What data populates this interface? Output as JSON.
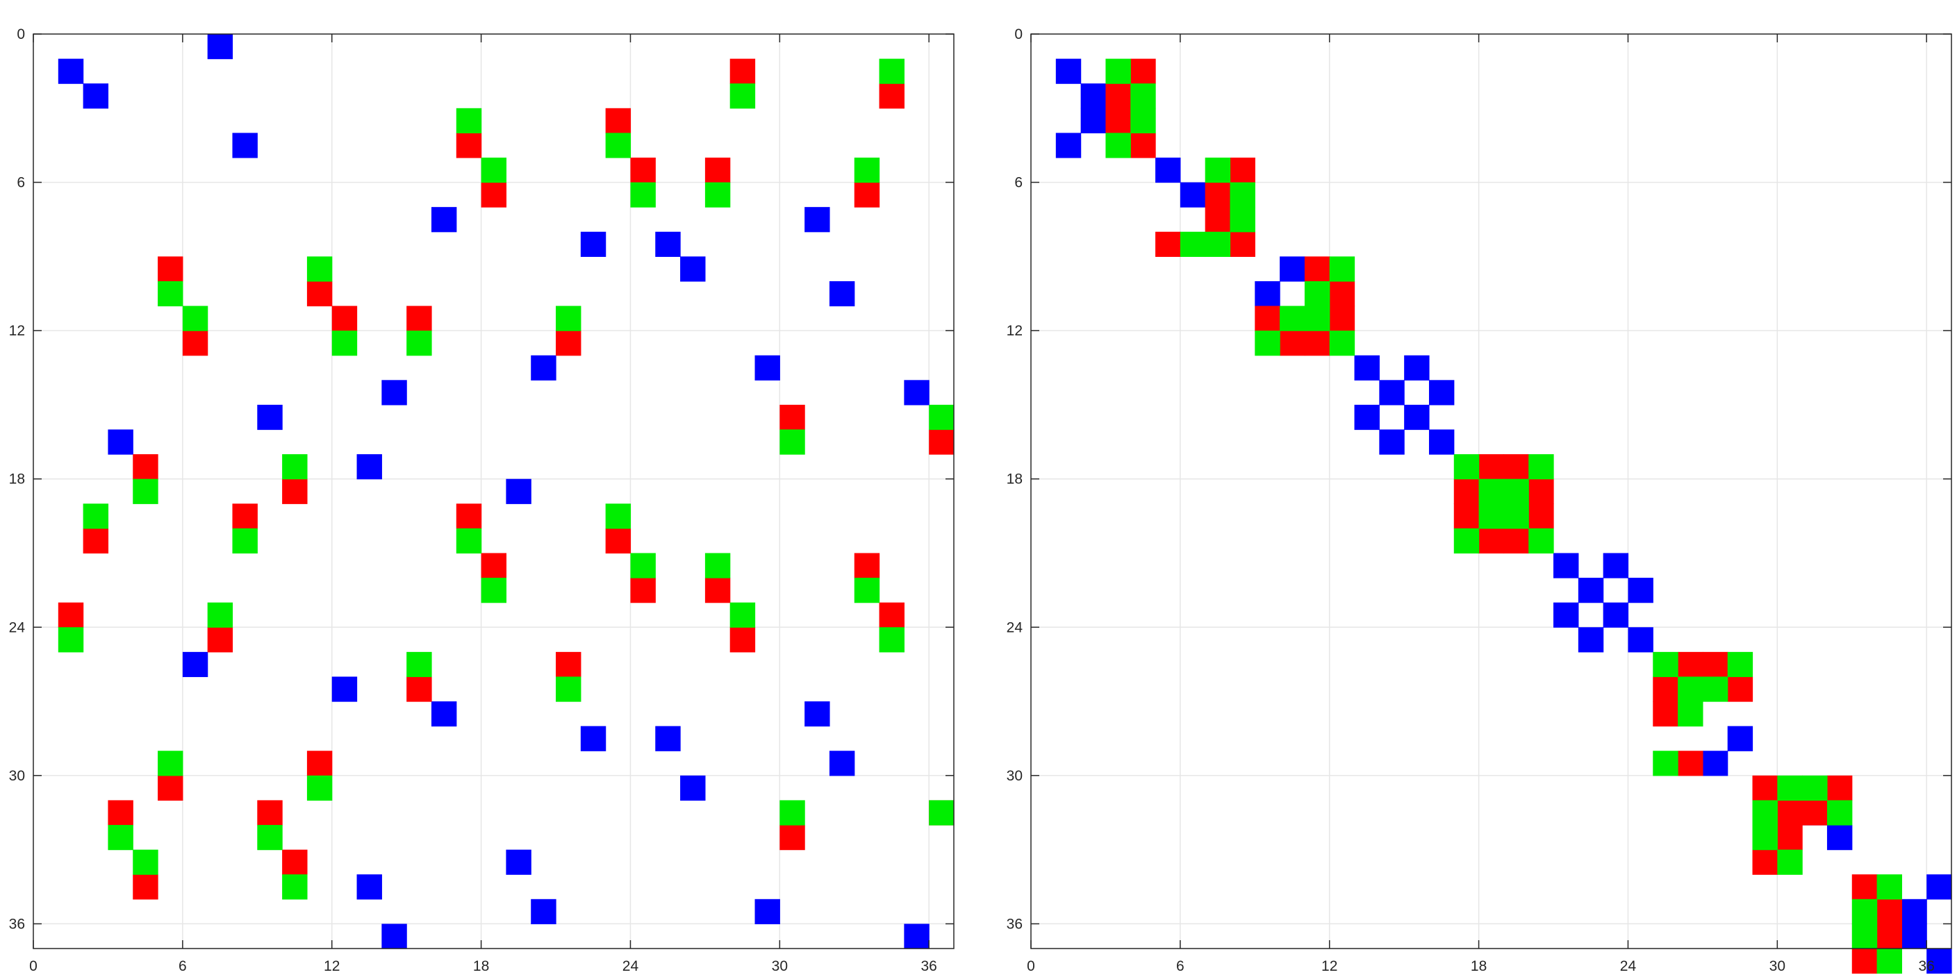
{
  "colors": {
    "blue": "#0000ff",
    "red": "#ff0000",
    "green": "#00ee00",
    "grid": "#e6e6e6",
    "axis": "#262626"
  },
  "chart_data": [
    {
      "type": "heatmap",
      "title": "",
      "xlabel": "",
      "ylabel": "",
      "xlim": [
        0,
        37
      ],
      "ylim": [
        37,
        0
      ],
      "ticks": [
        "0",
        "6",
        "12",
        "18",
        "24",
        "30",
        "36"
      ],
      "grid": true,
      "blue": [
        [
          0,
          7
        ],
        [
          1,
          1
        ],
        [
          2,
          2
        ],
        [
          4,
          8
        ],
        [
          7,
          16
        ],
        [
          7,
          31
        ],
        [
          8,
          22
        ],
        [
          8,
          25
        ],
        [
          9,
          26
        ],
        [
          10,
          32
        ],
        [
          13,
          20
        ],
        [
          13,
          29
        ],
        [
          14,
          14
        ],
        [
          14,
          35
        ],
        [
          15,
          9
        ],
        [
          16,
          3
        ],
        [
          17,
          13
        ],
        [
          18,
          19
        ],
        [
          25,
          6
        ],
        [
          26,
          12
        ],
        [
          27,
          16
        ],
        [
          27,
          31
        ],
        [
          28,
          22
        ],
        [
          28,
          25
        ],
        [
          29,
          32
        ],
        [
          30,
          26
        ],
        [
          33,
          19
        ],
        [
          34,
          13
        ],
        [
          35,
          20
        ],
        [
          35,
          29
        ],
        [
          36,
          14
        ],
        [
          36,
          35
        ]
      ],
      "red": [
        [
          1,
          28
        ],
        [
          2,
          34
        ],
        [
          3,
          23
        ],
        [
          4,
          17
        ],
        [
          5,
          24
        ],
        [
          5,
          27
        ],
        [
          6,
          18
        ],
        [
          6,
          33
        ],
        [
          9,
          5
        ],
        [
          10,
          11
        ],
        [
          11,
          12
        ],
        [
          11,
          15
        ],
        [
          12,
          6
        ],
        [
          12,
          21
        ],
        [
          15,
          30
        ],
        [
          16,
          36
        ],
        [
          17,
          4
        ],
        [
          18,
          10
        ],
        [
          19,
          8
        ],
        [
          19,
          17
        ],
        [
          20,
          2
        ],
        [
          20,
          23
        ],
        [
          21,
          18
        ],
        [
          21,
          33
        ],
        [
          22,
          24
        ],
        [
          22,
          27
        ],
        [
          23,
          1
        ],
        [
          23,
          34
        ],
        [
          24,
          7
        ],
        [
          24,
          28
        ],
        [
          25,
          21
        ],
        [
          26,
          15
        ],
        [
          29,
          11
        ],
        [
          30,
          5
        ],
        [
          31,
          3
        ],
        [
          31,
          9
        ],
        [
          31,
          36
        ],
        [
          32,
          30
        ],
        [
          33,
          10
        ],
        [
          34,
          4
        ]
      ],
      "green": [
        [
          1,
          34
        ],
        [
          2,
          28
        ],
        [
          3,
          17
        ],
        [
          4,
          23
        ],
        [
          5,
          18
        ],
        [
          5,
          33
        ],
        [
          6,
          24
        ],
        [
          6,
          27
        ],
        [
          9,
          11
        ],
        [
          10,
          5
        ],
        [
          11,
          6
        ],
        [
          11,
          21
        ],
        [
          12,
          12
        ],
        [
          12,
          15
        ],
        [
          15,
          36
        ],
        [
          16,
          30
        ],
        [
          17,
          10
        ],
        [
          18,
          4
        ],
        [
          19,
          2
        ],
        [
          19,
          23
        ],
        [
          20,
          8
        ],
        [
          20,
          17
        ],
        [
          21,
          24
        ],
        [
          21,
          27
        ],
        [
          22,
          18
        ],
        [
          22,
          33
        ],
        [
          23,
          7
        ],
        [
          23,
          28
        ],
        [
          24,
          1
        ],
        [
          24,
          34
        ],
        [
          25,
          15
        ],
        [
          26,
          21
        ],
        [
          29,
          5
        ],
        [
          30,
          11
        ],
        [
          31,
          30
        ],
        [
          31,
          36
        ],
        [
          32,
          3
        ],
        [
          32,
          9
        ],
        [
          33,
          4
        ],
        [
          34,
          10
        ]
      ]
    },
    {
      "type": "heatmap",
      "title": "",
      "xlabel": "",
      "ylabel": "",
      "xlim": [
        0,
        37
      ],
      "ylim": [
        37,
        0
      ],
      "ticks": [
        "0",
        "6",
        "12",
        "18",
        "24",
        "30",
        "36"
      ],
      "grid": true,
      "blue": [
        [
          1,
          1
        ],
        [
          2,
          2
        ],
        [
          3,
          2
        ],
        [
          4,
          1
        ],
        [
          5,
          5
        ],
        [
          6,
          6
        ],
        [
          9,
          10
        ],
        [
          10,
          9
        ],
        [
          13,
          13
        ],
        [
          13,
          15
        ],
        [
          14,
          14
        ],
        [
          14,
          16
        ],
        [
          15,
          13
        ],
        [
          15,
          15
        ],
        [
          16,
          14
        ],
        [
          16,
          16
        ],
        [
          21,
          21
        ],
        [
          21,
          23
        ],
        [
          22,
          22
        ],
        [
          22,
          24
        ],
        [
          23,
          21
        ],
        [
          23,
          23
        ],
        [
          24,
          22
        ],
        [
          24,
          24
        ],
        [
          28,
          28
        ],
        [
          29,
          27
        ],
        [
          31,
          31
        ],
        [
          32,
          32
        ],
        [
          34,
          36
        ],
        [
          35,
          35
        ],
        [
          36,
          35
        ],
        [
          37,
          36
        ]
      ],
      "red": [
        [
          1,
          4
        ],
        [
          2,
          3
        ],
        [
          3,
          3
        ],
        [
          4,
          4
        ],
        [
          5,
          8
        ],
        [
          6,
          7
        ],
        [
          7,
          7
        ],
        [
          8,
          5
        ],
        [
          8,
          8
        ],
        [
          9,
          11
        ],
        [
          10,
          12
        ],
        [
          11,
          9
        ],
        [
          11,
          12
        ],
        [
          12,
          10
        ],
        [
          12,
          11
        ],
        [
          17,
          18
        ],
        [
          17,
          19
        ],
        [
          18,
          17
        ],
        [
          18,
          20
        ],
        [
          19,
          17
        ],
        [
          19,
          20
        ],
        [
          20,
          18
        ],
        [
          20,
          19
        ],
        [
          25,
          26
        ],
        [
          25,
          27
        ],
        [
          26,
          25
        ],
        [
          26,
          28
        ],
        [
          27,
          25
        ],
        [
          29,
          26
        ],
        [
          30,
          29
        ],
        [
          30,
          32
        ],
        [
          31,
          30
        ],
        [
          31,
          31
        ],
        [
          32,
          30
        ],
        [
          33,
          29
        ],
        [
          34,
          33
        ],
        [
          35,
          34
        ],
        [
          36,
          34
        ],
        [
          37,
          33
        ]
      ],
      "green": [
        [
          1,
          3
        ],
        [
          2,
          4
        ],
        [
          3,
          4
        ],
        [
          4,
          3
        ],
        [
          5,
          7
        ],
        [
          6,
          8
        ],
        [
          7,
          8
        ],
        [
          8,
          6
        ],
        [
          8,
          7
        ],
        [
          9,
          12
        ],
        [
          10,
          11
        ],
        [
          11,
          10
        ],
        [
          11,
          11
        ],
        [
          12,
          9
        ],
        [
          12,
          12
        ],
        [
          17,
          17
        ],
        [
          17,
          20
        ],
        [
          18,
          18
        ],
        [
          18,
          19
        ],
        [
          19,
          18
        ],
        [
          19,
          19
        ],
        [
          20,
          17
        ],
        [
          20,
          20
        ],
        [
          25,
          25
        ],
        [
          25,
          28
        ],
        [
          26,
          26
        ],
        [
          26,
          27
        ],
        [
          27,
          26
        ],
        [
          29,
          25
        ],
        [
          30,
          30
        ],
        [
          30,
          31
        ],
        [
          31,
          29
        ],
        [
          31,
          32
        ],
        [
          32,
          29
        ],
        [
          33,
          30
        ],
        [
          34,
          34
        ],
        [
          35,
          33
        ],
        [
          36,
          33
        ],
        [
          37,
          34
        ]
      ]
    }
  ]
}
